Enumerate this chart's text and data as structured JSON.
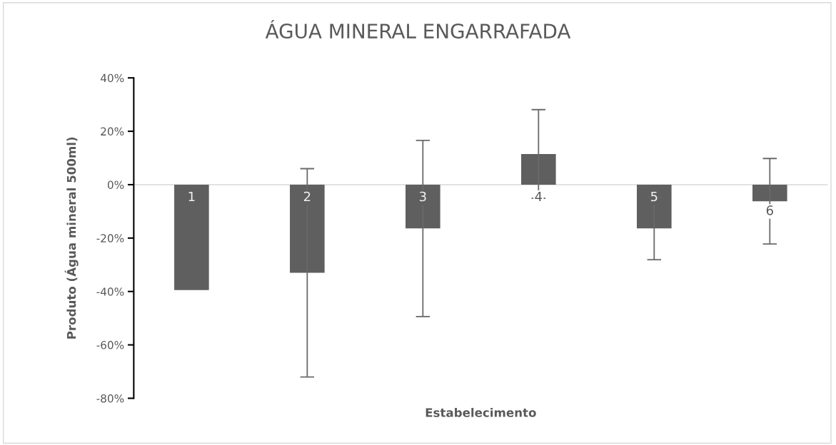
{
  "chart_data": {
    "type": "bar",
    "title": "ÁGUA MINERAL ENGARRAFADA",
    "xlabel": "Estabelecimento",
    "ylabel": "Produto (Água mineral 500ml)",
    "categories": [
      "1",
      "2",
      "3",
      "4",
      "5",
      "6"
    ],
    "series": [
      {
        "color": "#5f5f5f",
        "values": [
          -39.5,
          -33,
          -16.4,
          11.5,
          -16.4,
          -6.2
        ],
        "errors": [
          null,
          39,
          33,
          16.6,
          11.7,
          16
        ]
      }
    ],
    "ylim": [
      -80,
      40
    ],
    "yticks": [
      {
        "value": -80,
        "label": "-80%"
      },
      {
        "value": -60,
        "label": "-60%"
      },
      {
        "value": -40,
        "label": "-40%"
      },
      {
        "value": -20,
        "label": "-20%"
      },
      {
        "value": 0,
        "label": "0%"
      },
      {
        "value": 20,
        "label": "20%"
      },
      {
        "value": 40,
        "label": "40%"
      }
    ],
    "grid": false
  }
}
